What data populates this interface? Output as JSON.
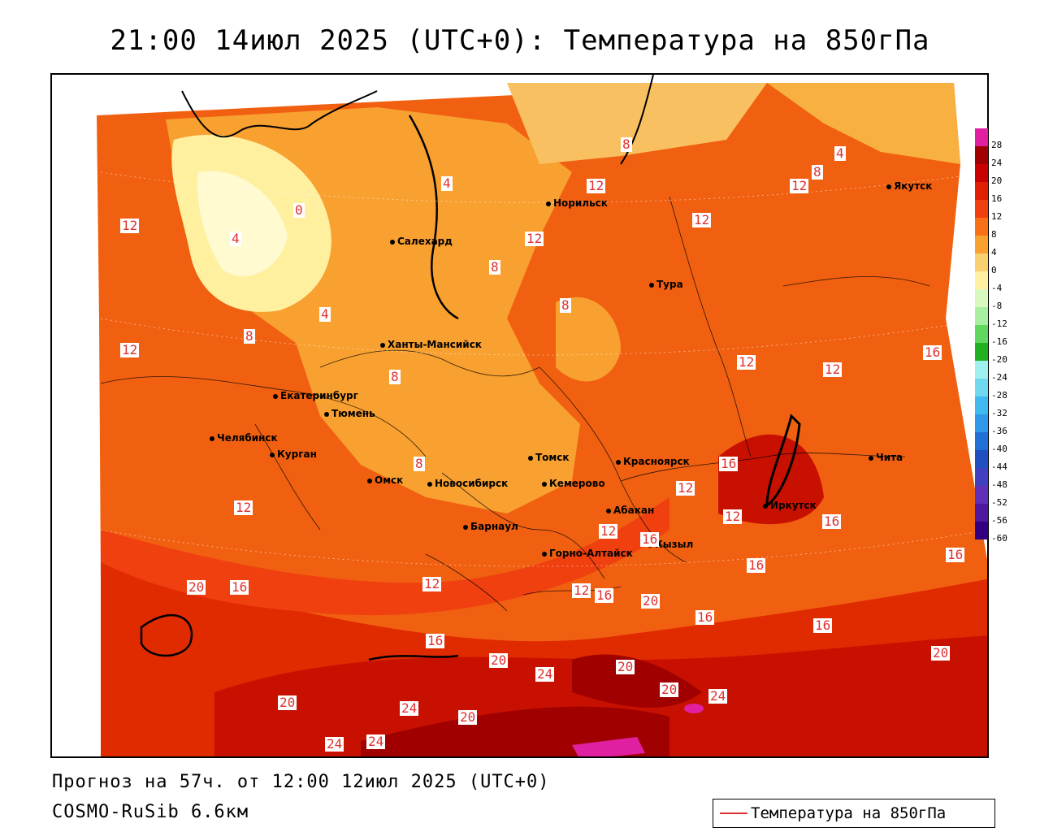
{
  "title": "21:00 14июл 2025 (UTC+0): Температура на 850гПа",
  "footer": {
    "forecast": "Прогноз на 57ч. от 12:00 12июл 2025 (UTC+0)",
    "model": "COSMO-RuSib 6.6км"
  },
  "legend": {
    "label": "Температура на 850гПа",
    "line_color": "#e03030"
  },
  "cities": [
    {
      "name": "Якутск"
    },
    {
      "name": "Норильск"
    },
    {
      "name": "Салехард"
    },
    {
      "name": "Тура"
    },
    {
      "name": "Ханты-Мансийск"
    },
    {
      "name": "Екатеринбург"
    },
    {
      "name": "Тюмень"
    },
    {
      "name": "Челябинск"
    },
    {
      "name": "Курган"
    },
    {
      "name": "Омск"
    },
    {
      "name": "Томск"
    },
    {
      "name": "Красноярск"
    },
    {
      "name": "Новосибирск"
    },
    {
      "name": "Кемерово"
    },
    {
      "name": "Барнаул"
    },
    {
      "name": "Абакан"
    },
    {
      "name": "Горно-Алтайск"
    },
    {
      "name": "Кызыл"
    },
    {
      "name": "Иркутск"
    },
    {
      "name": "Чита"
    }
  ],
  "contour_labels": [
    "0",
    "4",
    "4",
    "4",
    "4",
    "8",
    "8",
    "8",
    "8",
    "8",
    "8",
    "8",
    "12",
    "12",
    "12",
    "12",
    "12",
    "12",
    "12",
    "12",
    "12",
    "12",
    "12",
    "12",
    "12",
    "12",
    "16",
    "16",
    "16",
    "16",
    "16",
    "16",
    "16",
    "16",
    "16",
    "16",
    "16",
    "20",
    "20",
    "20",
    "20",
    "20",
    "20",
    "20",
    "20",
    "24",
    "24",
    "24",
    "24",
    "24"
  ],
  "colorbar": {
    "ticks": [
      "28",
      "24",
      "20",
      "16",
      "12",
      "8",
      "4",
      "0",
      "-4",
      "-8",
      "-12",
      "-16",
      "-20",
      "-24",
      "-28",
      "-32",
      "-36",
      "-40",
      "-44",
      "-48",
      "-52",
      "-56",
      "-60"
    ],
    "colors": [
      "#e020a0",
      "#a00000",
      "#c80000",
      "#e02000",
      "#f04010",
      "#f87018",
      "#f8a030",
      "#f8d070",
      "#fff0a0",
      "#d8f8c0",
      "#a8f0a0",
      "#60d860",
      "#20b020",
      "#a0f0f0",
      "#70d8f0",
      "#40b8f0",
      "#3098e8",
      "#2070d8",
      "#2050c0",
      "#4040c0",
      "#6030b8",
      "#5018a0",
      "#300080"
    ]
  }
}
